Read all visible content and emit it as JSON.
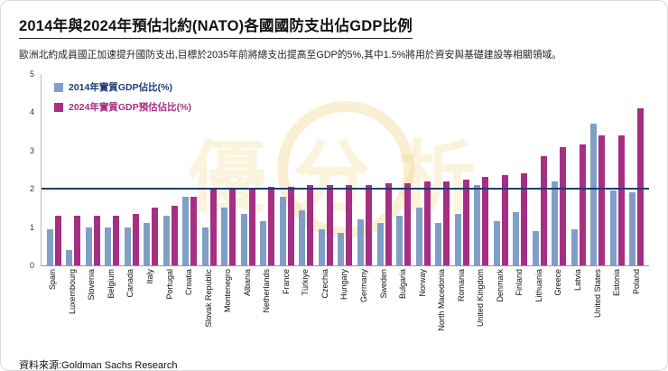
{
  "header": {
    "title": "2014年與2024年預估北約(NATO)各國國防支出佔GDP比例",
    "subtitle": "歐洲北約成員國正加速提升國防支出,目標於2035年前將總支出提高至GDP的5%,其中1.5%將用於資安與基礎建設等相關領域。"
  },
  "legend": [
    {
      "label": "2014年實質GDP佔比(%)",
      "color": "#7f9fc6",
      "text_color": "#1f3c70"
    },
    {
      "label": "2024年實質GDP預估佔比(%)",
      "color": "#a62e83",
      "text_color": "#a62e83"
    }
  ],
  "watermark": {
    "text": "優分析"
  },
  "footer": {
    "source": "資料來源:Goldman Sachs Research"
  },
  "chart_data": {
    "type": "bar",
    "title": "2014年與2024年預估北約(NATO)各國國防支出佔GDP比例",
    "xlabel": "",
    "ylabel": "",
    "ylim": [
      0,
      5
    ],
    "yticks": [
      0,
      1,
      2,
      3,
      4,
      5
    ],
    "grid": false,
    "legend_position": "top-left",
    "target_line": 2,
    "target_line_color": "#1f3c70",
    "categories": [
      "Spain",
      "Luxembourg",
      "Slovenia",
      "Belgium",
      "Canada",
      "Italy",
      "Portugal",
      "Croatia",
      "Slovak Republic",
      "Montenegro",
      "Albania",
      "Netherlands",
      "France",
      "Türkiye",
      "Czechia",
      "Hungary",
      "Germany",
      "Sweden",
      "Bulgaria",
      "Norway",
      "North Macedonia",
      "Romania",
      "United Kingdom",
      "Denmark",
      "Finland",
      "Lithuania",
      "Greece",
      "Latvia",
      "United States",
      "Estonia",
      "Poland"
    ],
    "series": [
      {
        "name": "2014年實質GDP佔比(%)",
        "color": "#7f9fc6",
        "values": [
          0.95,
          0.4,
          1.0,
          1.0,
          1.0,
          1.1,
          1.3,
          1.8,
          1.0,
          1.5,
          1.35,
          1.15,
          1.8,
          1.45,
          0.95,
          0.85,
          1.2,
          1.1,
          1.3,
          1.5,
          1.1,
          1.35,
          2.1,
          1.15,
          1.4,
          0.9,
          2.2,
          0.95,
          3.7,
          1.95,
          1.9
        ]
      },
      {
        "name": "2024年實質GDP預估佔比(%)",
        "color": "#a62e83",
        "values": [
          1.3,
          1.3,
          1.3,
          1.3,
          1.35,
          1.5,
          1.55,
          1.8,
          2.0,
          2.0,
          2.0,
          2.05,
          2.05,
          2.1,
          2.1,
          2.1,
          2.1,
          2.15,
          2.15,
          2.2,
          2.2,
          2.25,
          2.3,
          2.35,
          2.4,
          2.85,
          3.1,
          3.15,
          3.4,
          3.4,
          4.1
        ]
      }
    ]
  }
}
